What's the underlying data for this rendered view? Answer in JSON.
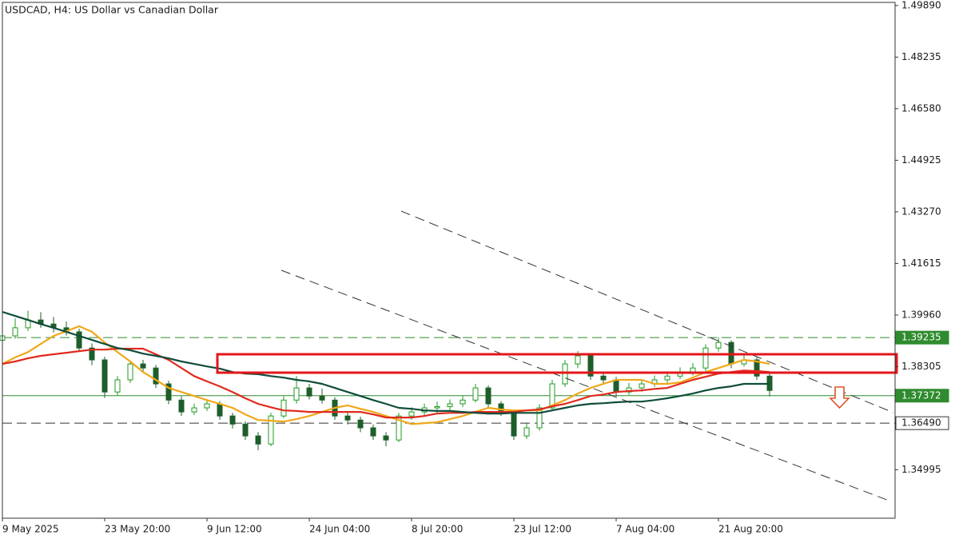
{
  "chart_data": {
    "type": "candlestick",
    "title": "USDCAD, H4:  US Dollar vs Canadian Dollar",
    "categories": [
      "9 May 2025",
      null,
      null,
      null,
      null,
      null,
      null,
      null,
      "23 May 20:00",
      null,
      null,
      null,
      null,
      null,
      null,
      null,
      "9 Jun 12:00",
      null,
      null,
      null,
      null,
      null,
      null,
      null,
      "24 Jun 04:00",
      null,
      null,
      null,
      null,
      null,
      null,
      null,
      "8 Jul 20:00",
      null,
      null,
      null,
      null,
      null,
      null,
      null,
      "23 Jul 12:00",
      null,
      null,
      null,
      null,
      null,
      null,
      null,
      "7 Aug 04:00",
      null,
      null,
      null,
      null,
      null,
      null,
      null,
      "21 Aug 20:00",
      null,
      null,
      null,
      null
    ],
    "open": [
      1.3915,
      1.3929,
      1.3955,
      1.398,
      1.3967,
      1.3955,
      1.3942,
      1.389,
      1.3852,
      1.3749,
      1.3788,
      1.3839,
      1.3826,
      1.3775,
      1.3723,
      1.3685,
      1.3698,
      1.3711,
      1.3672,
      1.3646,
      1.3608,
      1.3582,
      1.3672,
      1.3723,
      1.3762,
      1.3736,
      1.3723,
      1.3672,
      1.3659,
      1.3634,
      1.3608,
      1.3595,
      1.3672,
      1.3685,
      1.3698,
      1.3702,
      1.3711,
      1.3723,
      1.3762,
      1.3711,
      1.3685,
      1.3608,
      1.3634,
      1.3698,
      1.3775,
      1.3839,
      1.3865,
      1.38,
      1.3788,
      1.3749,
      1.3762,
      1.3775,
      1.3788,
      1.38,
      1.3813,
      1.3826,
      1.389,
      1.3908,
      1.3839,
      1.3852,
      1.38
    ],
    "high": [
      1.3962,
      1.3985,
      1.401,
      1.4005,
      1.399,
      1.3975,
      1.3952,
      1.3905,
      1.3862,
      1.38,
      1.385,
      1.3852,
      1.3836,
      1.3785,
      1.3735,
      1.3712,
      1.3725,
      1.372,
      1.3682,
      1.3655,
      1.362,
      1.3682,
      1.3735,
      1.38,
      1.3775,
      1.376,
      1.3732,
      1.3685,
      1.367,
      1.3645,
      1.362,
      1.3682,
      1.37,
      1.3712,
      1.3718,
      1.3725,
      1.3738,
      1.3775,
      1.377,
      1.372,
      1.3692,
      1.3648,
      1.371,
      1.3788,
      1.3852,
      1.388,
      1.3872,
      1.3815,
      1.3798,
      1.3778,
      1.379,
      1.3802,
      1.3815,
      1.3828,
      1.3842,
      1.3902,
      1.3925,
      1.3915,
      1.387,
      1.386,
      1.3808
    ],
    "low": [
      1.3905,
      1.392,
      1.3945,
      1.3955,
      1.394,
      1.393,
      1.3878,
      1.3835,
      1.373,
      1.3738,
      1.3778,
      1.3812,
      1.3762,
      1.371,
      1.3672,
      1.3675,
      1.3688,
      1.366,
      1.3632,
      1.3595,
      1.3562,
      1.3575,
      1.3665,
      1.3712,
      1.3725,
      1.3712,
      1.366,
      1.3645,
      1.362,
      1.3595,
      1.3575,
      1.3588,
      1.366,
      1.3672,
      1.368,
      1.369,
      1.37,
      1.3715,
      1.37,
      1.3672,
      1.3595,
      1.3598,
      1.3625,
      1.369,
      1.3765,
      1.3825,
      1.3788,
      1.3775,
      1.3735,
      1.374,
      1.375,
      1.3765,
      1.3778,
      1.379,
      1.3802,
      1.3815,
      1.3878,
      1.3825,
      1.383,
      1.3788,
      1.3735
    ],
    "close": [
      1.3929,
      1.3955,
      1.398,
      1.3967,
      1.3955,
      1.3942,
      1.389,
      1.3852,
      1.3749,
      1.3788,
      1.3839,
      1.3826,
      1.3775,
      1.3723,
      1.3685,
      1.3698,
      1.3711,
      1.3672,
      1.3646,
      1.3608,
      1.3582,
      1.3672,
      1.3723,
      1.3762,
      1.3736,
      1.3723,
      1.3672,
      1.3659,
      1.3634,
      1.3608,
      1.3595,
      1.3672,
      1.3685,
      1.3698,
      1.3702,
      1.3711,
      1.3723,
      1.3762,
      1.3711,
      1.3685,
      1.3608,
      1.3634,
      1.3698,
      1.3775,
      1.3839,
      1.3865,
      1.38,
      1.3788,
      1.3749,
      1.3762,
      1.3775,
      1.3788,
      1.38,
      1.3813,
      1.3826,
      1.389,
      1.3908,
      1.3839,
      1.3852,
      1.38,
      1.3754
    ],
    "up_color": "#1f9a1f",
    "down_color": "#1d5e2a",
    "series": [
      {
        "color": "#f0a818",
        "values": [
          1.3839,
          1.386,
          1.3877,
          1.3903,
          1.3929,
          1.3944,
          1.396,
          1.3942,
          1.3908,
          1.3877,
          1.3847,
          1.3813,
          1.3788,
          1.3762,
          1.3749,
          1.3736,
          1.3723,
          1.3711,
          1.3698,
          1.3677,
          1.3659,
          1.3657,
          1.3654,
          1.3662,
          1.3672,
          1.3685,
          1.3698,
          1.3706,
          1.3695,
          1.3685,
          1.3672,
          1.3659,
          1.3646,
          1.3649,
          1.3652,
          1.3662,
          1.3672,
          1.3685,
          1.3698,
          1.3693,
          1.369,
          1.369,
          1.369,
          1.3706,
          1.3723,
          1.3744,
          1.3762,
          1.3775,
          1.3788,
          1.3788,
          1.3788,
          1.3775,
          1.3775,
          1.378,
          1.3795,
          1.3813,
          1.3826,
          1.3839,
          1.3852,
          1.3847,
          1.3839
        ]
      },
      {
        "color": "#e02a1e",
        "values": [
          1.3839,
          1.3847,
          1.3857,
          1.3865,
          1.387,
          1.3875,
          1.388,
          1.3885,
          1.3885,
          1.3888,
          1.3888,
          1.3888,
          1.387,
          1.3852,
          1.3826,
          1.38,
          1.3783,
          1.3767,
          1.3749,
          1.3729,
          1.3711,
          1.37,
          1.369,
          1.3688,
          1.3685,
          1.3685,
          1.3685,
          1.3685,
          1.3685,
          1.3677,
          1.3667,
          1.3667,
          1.3667,
          1.3672,
          1.368,
          1.3682,
          1.3682,
          1.3685,
          1.3685,
          1.3685,
          1.3685,
          1.369,
          1.3693,
          1.3703,
          1.3711,
          1.3723,
          1.3736,
          1.3741,
          1.3749,
          1.3752,
          1.3754,
          1.3759,
          1.3762,
          1.3775,
          1.3788,
          1.3798,
          1.3808,
          1.3813,
          1.3818,
          1.3816,
          1.3813
        ]
      },
      {
        "color": "#0f4d3a",
        "values": [
          1.4006,
          1.3993,
          1.398,
          1.3967,
          1.3955,
          1.3942,
          1.3929,
          1.3916,
          1.3903,
          1.389,
          1.3883,
          1.3872,
          1.3865,
          1.3857,
          1.3847,
          1.3839,
          1.3831,
          1.3824,
          1.3813,
          1.3808,
          1.3806,
          1.38,
          1.3795,
          1.3788,
          1.3783,
          1.3775,
          1.3762,
          1.3749,
          1.3736,
          1.3723,
          1.3711,
          1.3698,
          1.3695,
          1.369,
          1.3688,
          1.3688,
          1.3685,
          1.3682,
          1.368,
          1.368,
          1.3682,
          1.3682,
          1.3682,
          1.369,
          1.3698,
          1.3706,
          1.3711,
          1.3713,
          1.3716,
          1.3718,
          1.3718,
          1.3723,
          1.3729,
          1.3736,
          1.3744,
          1.3754,
          1.3762,
          1.3767,
          1.3775,
          1.3775,
          1.3775
        ]
      }
    ],
    "ylim": [
      1.3344,
      1.4999
    ],
    "yticks": [
      {
        "value": 1.4989,
        "label": "1.49890"
      },
      {
        "value": 1.48235,
        "label": "1.48235"
      },
      {
        "value": 1.4658,
        "label": "1.46580"
      },
      {
        "value": 1.44925,
        "label": "1.44925"
      },
      {
        "value": 1.4327,
        "label": "1.43270"
      },
      {
        "value": 1.41615,
        "label": "1.41615"
      },
      {
        "value": 1.3996,
        "label": "1.39960"
      },
      {
        "value": 1.38305,
        "label": "1.38305"
      },
      {
        "value": 1.34995,
        "label": "1.34995"
      }
    ],
    "grid": false,
    "levels": [
      {
        "value": 1.39235,
        "label": "1.39235",
        "color": "#2e8b2e",
        "style": "dashed"
      },
      {
        "value": 1.37372,
        "label": "1.37372",
        "color": "#2e8b2e",
        "style": "solid"
      },
      {
        "value": 1.3649,
        "label": "1.36490",
        "color": "#333333",
        "style": "dashed"
      }
    ]
  }
}
